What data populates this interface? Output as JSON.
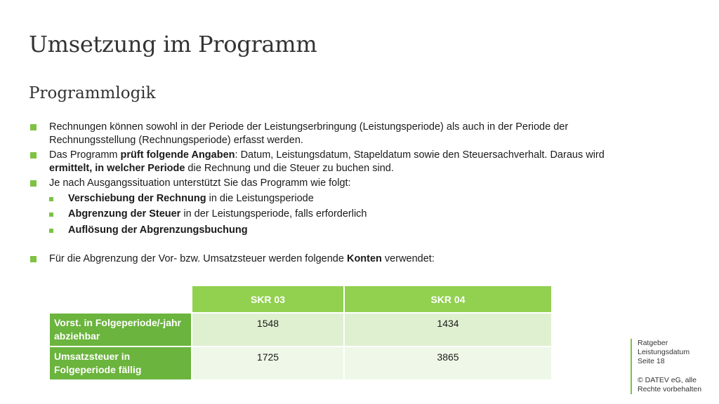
{
  "slide": {
    "title": "Umsetzung im Programm",
    "subtitle": "Programmlogik"
  },
  "bullets": {
    "b1": "Rechnungen können sowohl in der Periode der Leistungserbringung (Leistungsperiode) als auch in der Periode der Rechnungsstellung (Rechnungsperiode) erfasst werden.",
    "b2_pre": "Das Programm ",
    "b2_bold1": "prüft folgende Angaben",
    "b2_mid": ": Datum, Leistungsdatum, Stapeldatum sowie den Steuersachverhalt. Daraus wird ",
    "b2_bold2": "ermittelt, in welcher Periode",
    "b2_post": " die Rechnung und die Steuer zu buchen sind.",
    "b3": "Je nach Ausgangssituation unterstützt Sie das Programm wie folgt:",
    "s1_bold": "Verschiebung der Rechnung",
    "s1_rest": " in die Leistungsperiode",
    "s2_bold": "Abgrenzung der Steuer",
    "s2_rest": " in der Leistungsperiode, falls erforderlich",
    "s3_bold": "Auflösung der Abgrenzungsbuchung",
    "b4_pre": "Für die Abgrenzung der Vor-  bzw. Umsatzsteuer werden folgende ",
    "b4_bold": "Konten",
    "b4_post": " verwendet:"
  },
  "table": {
    "col1": "SKR 03",
    "col2": "SKR 04",
    "rows": [
      {
        "label": "Vorst. in Folgeperiode/-jahr abziehbar",
        "skr03": "1548",
        "skr04": "1434"
      },
      {
        "label": "Umsatzsteuer in Folgeperiode fällig",
        "skr03": "1725",
        "skr04": "3865"
      }
    ]
  },
  "footer": {
    "doc_title": "Ratgeber Leistungsdatum",
    "page_label": "Seite",
    "page_number": "18",
    "copyright": "© DATEV eG, alle Rechte vorbehalten"
  },
  "colors": {
    "accent": "#7dc242",
    "table_header": "#92d050",
    "row_header": "#6bb43d",
    "cell_dark": "#dff0d0",
    "cell_light": "#eff8e8"
  }
}
